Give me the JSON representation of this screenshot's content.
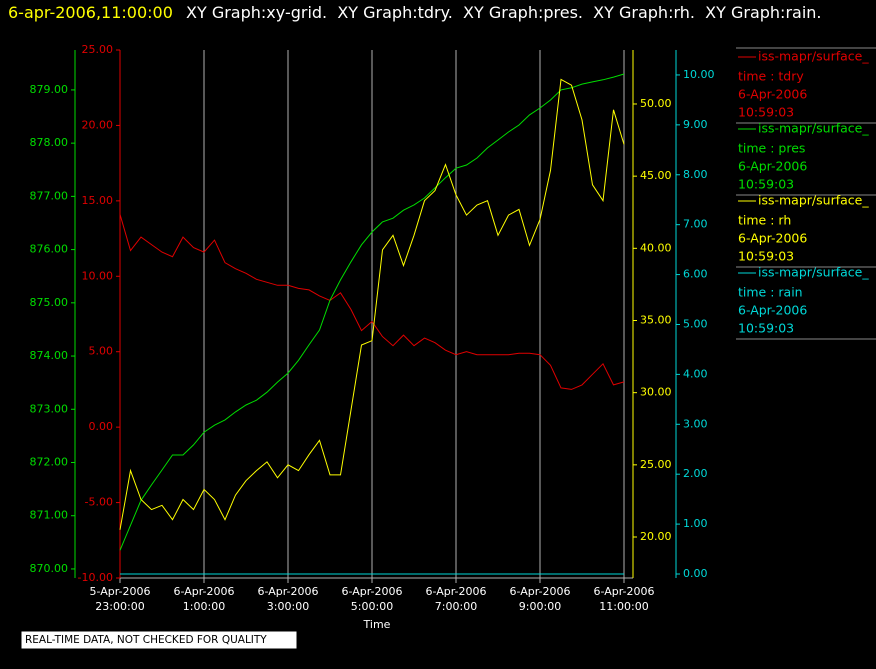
{
  "header": {
    "timestamp": "6-apr-2006,11:00:00",
    "title": "XY Graph:xy-grid.  XY Graph:tdry.  XY Graph:pres.  XY Graph:rh.  XY Graph:rain."
  },
  "note": "REAL-TIME DATA, NOT CHECKED FOR QUALITY",
  "chart_data": {
    "type": "line",
    "xlabel": "Time",
    "grid": true,
    "xlim": [
      "2006-04-05T23:00:00",
      "2006-04-06T11:00:00"
    ],
    "xticks": [
      {
        "value": "2006-04-05T23:00:00",
        "label": [
          "5-Apr-2006",
          "23:00:00"
        ]
      },
      {
        "value": "2006-04-06T01:00:00",
        "label": [
          "6-Apr-2006",
          "1:00:00"
        ]
      },
      {
        "value": "2006-04-06T03:00:00",
        "label": [
          "6-Apr-2006",
          "3:00:00"
        ]
      },
      {
        "value": "2006-04-06T05:00:00",
        "label": [
          "6-Apr-2006",
          "5:00:00"
        ]
      },
      {
        "value": "2006-04-06T07:00:00",
        "label": [
          "6-Apr-2006",
          "7:00:00"
        ]
      },
      {
        "value": "2006-04-06T09:00:00",
        "label": [
          "6-Apr-2006",
          "9:00:00"
        ]
      },
      {
        "value": "2006-04-06T11:00:00",
        "label": [
          "6-Apr-2006",
          "11:00:00"
        ]
      }
    ],
    "x": [
      "2006-04-05T23:00:00",
      "2006-04-05T23:15:00",
      "2006-04-05T23:30:00",
      "2006-04-05T23:45:00",
      "2006-04-06T00:00:00",
      "2006-04-06T00:15:00",
      "2006-04-06T00:30:00",
      "2006-04-06T00:45:00",
      "2006-04-06T01:00:00",
      "2006-04-06T01:15:00",
      "2006-04-06T01:30:00",
      "2006-04-06T01:45:00",
      "2006-04-06T02:00:00",
      "2006-04-06T02:15:00",
      "2006-04-06T02:30:00",
      "2006-04-06T02:45:00",
      "2006-04-06T03:00:00",
      "2006-04-06T03:15:00",
      "2006-04-06T03:30:00",
      "2006-04-06T03:45:00",
      "2006-04-06T04:00:00",
      "2006-04-06T04:15:00",
      "2006-04-06T04:30:00",
      "2006-04-06T04:45:00",
      "2006-04-06T05:00:00",
      "2006-04-06T05:15:00",
      "2006-04-06T05:30:00",
      "2006-04-06T05:45:00",
      "2006-04-06T06:00:00",
      "2006-04-06T06:15:00",
      "2006-04-06T06:30:00",
      "2006-04-06T06:45:00",
      "2006-04-06T07:00:00",
      "2006-04-06T07:15:00",
      "2006-04-06T07:30:00",
      "2006-04-06T07:45:00",
      "2006-04-06T08:00:00",
      "2006-04-06T08:15:00",
      "2006-04-06T08:30:00",
      "2006-04-06T08:45:00",
      "2006-04-06T09:00:00",
      "2006-04-06T09:15:00",
      "2006-04-06T09:30:00",
      "2006-04-06T09:45:00",
      "2006-04-06T10:00:00",
      "2006-04-06T10:15:00",
      "2006-04-06T10:30:00",
      "2006-04-06T10:45:00",
      "2006-04-06T11:00:00"
    ],
    "series": [
      {
        "name": "iss-mapr/surface_",
        "legend": [
          "time : tdry",
          "6-Apr-2006",
          "10:59:03"
        ],
        "color": "#e00000",
        "ylim": [
          -10,
          25
        ],
        "yticks": [
          {
            "value": -10,
            "label": "-10.00"
          },
          {
            "value": -5,
            "label": "-5.00"
          },
          {
            "value": 0,
            "label": "0.00"
          },
          {
            "value": 5,
            "label": "5.00"
          },
          {
            "value": 10,
            "label": "10.00"
          },
          {
            "value": 15,
            "label": "15.00"
          },
          {
            "value": 20,
            "label": "20.00"
          },
          {
            "value": 25,
            "label": "25.00"
          }
        ],
        "values": [
          14.1,
          11.7,
          12.6,
          12.1,
          11.6,
          11.3,
          12.6,
          11.9,
          11.6,
          12.4,
          10.9,
          10.5,
          10.2,
          9.8,
          9.6,
          9.4,
          9.4,
          9.2,
          9.1,
          8.7,
          8.4,
          8.9,
          7.8,
          6.4,
          7.0,
          6.0,
          5.4,
          6.1,
          5.4,
          5.9,
          5.6,
          5.1,
          4.8,
          5.0,
          4.8,
          4.8,
          4.8,
          4.8,
          4.9,
          4.9,
          4.8,
          4.1,
          2.6,
          2.5,
          2.8,
          3.5,
          4.2,
          2.8,
          3.0
        ]
      },
      {
        "name": "iss-mapr/surface_",
        "legend": [
          "time : pres",
          "6-Apr-2006",
          "10:59:03"
        ],
        "color": "#00dd00",
        "ylim": [
          869.83,
          879.75
        ],
        "yticks": [
          {
            "value": 870,
            "label": "870.00"
          },
          {
            "value": 871,
            "label": "871.00"
          },
          {
            "value": 872,
            "label": "872.00"
          },
          {
            "value": 873,
            "label": "873.00"
          },
          {
            "value": 874,
            "label": "874.00"
          },
          {
            "value": 875,
            "label": "875.00"
          },
          {
            "value": 876,
            "label": "876.00"
          },
          {
            "value": 877,
            "label": "877.00"
          },
          {
            "value": 878,
            "label": "878.00"
          },
          {
            "value": 879,
            "label": "879.00"
          }
        ],
        "values": [
          870.35,
          870.82,
          871.29,
          871.58,
          871.86,
          872.14,
          872.14,
          872.33,
          872.57,
          872.7,
          872.8,
          872.95,
          873.08,
          873.17,
          873.32,
          873.51,
          873.68,
          873.92,
          874.21,
          874.49,
          875.05,
          875.43,
          875.77,
          876.09,
          876.33,
          876.52,
          876.59,
          876.74,
          876.84,
          876.97,
          877.16,
          877.35,
          877.53,
          877.59,
          877.72,
          877.91,
          878.06,
          878.21,
          878.34,
          878.53,
          878.66,
          878.81,
          879.0,
          879.04,
          879.11,
          879.15,
          879.19,
          879.24,
          879.3
        ]
      },
      {
        "name": "iss-mapr/surface_",
        "legend": [
          "time : rh",
          "6-Apr-2006",
          "10:59:03"
        ],
        "color": "#ffff00",
        "ylim": [
          17.16,
          53.74
        ],
        "yticks": [
          {
            "value": 20,
            "label": "20.00"
          },
          {
            "value": 25,
            "label": "25.00"
          },
          {
            "value": 30,
            "label": "30.00"
          },
          {
            "value": 35,
            "label": "35.00"
          },
          {
            "value": 40,
            "label": "40.00"
          },
          {
            "value": 45,
            "label": "45.00"
          },
          {
            "value": 50,
            "label": "50.00"
          }
        ],
        "values": [
          20.5,
          24.6,
          22.6,
          21.9,
          22.2,
          21.2,
          22.6,
          21.9,
          23.3,
          22.6,
          21.2,
          22.9,
          23.9,
          24.6,
          25.2,
          24.1,
          25.0,
          24.6,
          25.7,
          26.7,
          24.3,
          24.3,
          28.8,
          33.3,
          33.6,
          39.9,
          40.9,
          38.8,
          40.9,
          43.3,
          44.0,
          45.8,
          43.7,
          42.3,
          43.0,
          43.3,
          40.9,
          42.3,
          42.7,
          40.2,
          42.0,
          45.4,
          51.7,
          51.3,
          48.9,
          44.4,
          43.3,
          49.6,
          47.2
        ]
      },
      {
        "name": "iss-mapr/surface_",
        "legend": [
          "time : rain",
          "6-Apr-2006",
          "10:59:03"
        ],
        "color": "#00d8d8",
        "ylim": [
          -0.08,
          10.5
        ],
        "yticks": [
          {
            "value": 0,
            "label": "0.00"
          },
          {
            "value": 1,
            "label": "1.00"
          },
          {
            "value": 2,
            "label": "2.00"
          },
          {
            "value": 3,
            "label": "3.00"
          },
          {
            "value": 4,
            "label": "4.00"
          },
          {
            "value": 5,
            "label": "5.00"
          },
          {
            "value": 6,
            "label": "6.00"
          },
          {
            "value": 7,
            "label": "7.00"
          },
          {
            "value": 8,
            "label": "8.00"
          },
          {
            "value": 9,
            "label": "9.00"
          },
          {
            "value": 10,
            "label": "10.00"
          }
        ],
        "values": [
          0,
          0,
          0,
          0,
          0,
          0,
          0,
          0,
          0,
          0,
          0,
          0,
          0,
          0,
          0,
          0,
          0,
          0,
          0,
          0,
          0,
          0,
          0,
          0,
          0,
          0,
          0,
          0,
          0,
          0,
          0,
          0,
          0,
          0,
          0,
          0,
          0,
          0,
          0,
          0,
          0,
          0,
          0,
          0,
          0,
          0,
          0,
          0,
          0
        ]
      }
    ]
  }
}
